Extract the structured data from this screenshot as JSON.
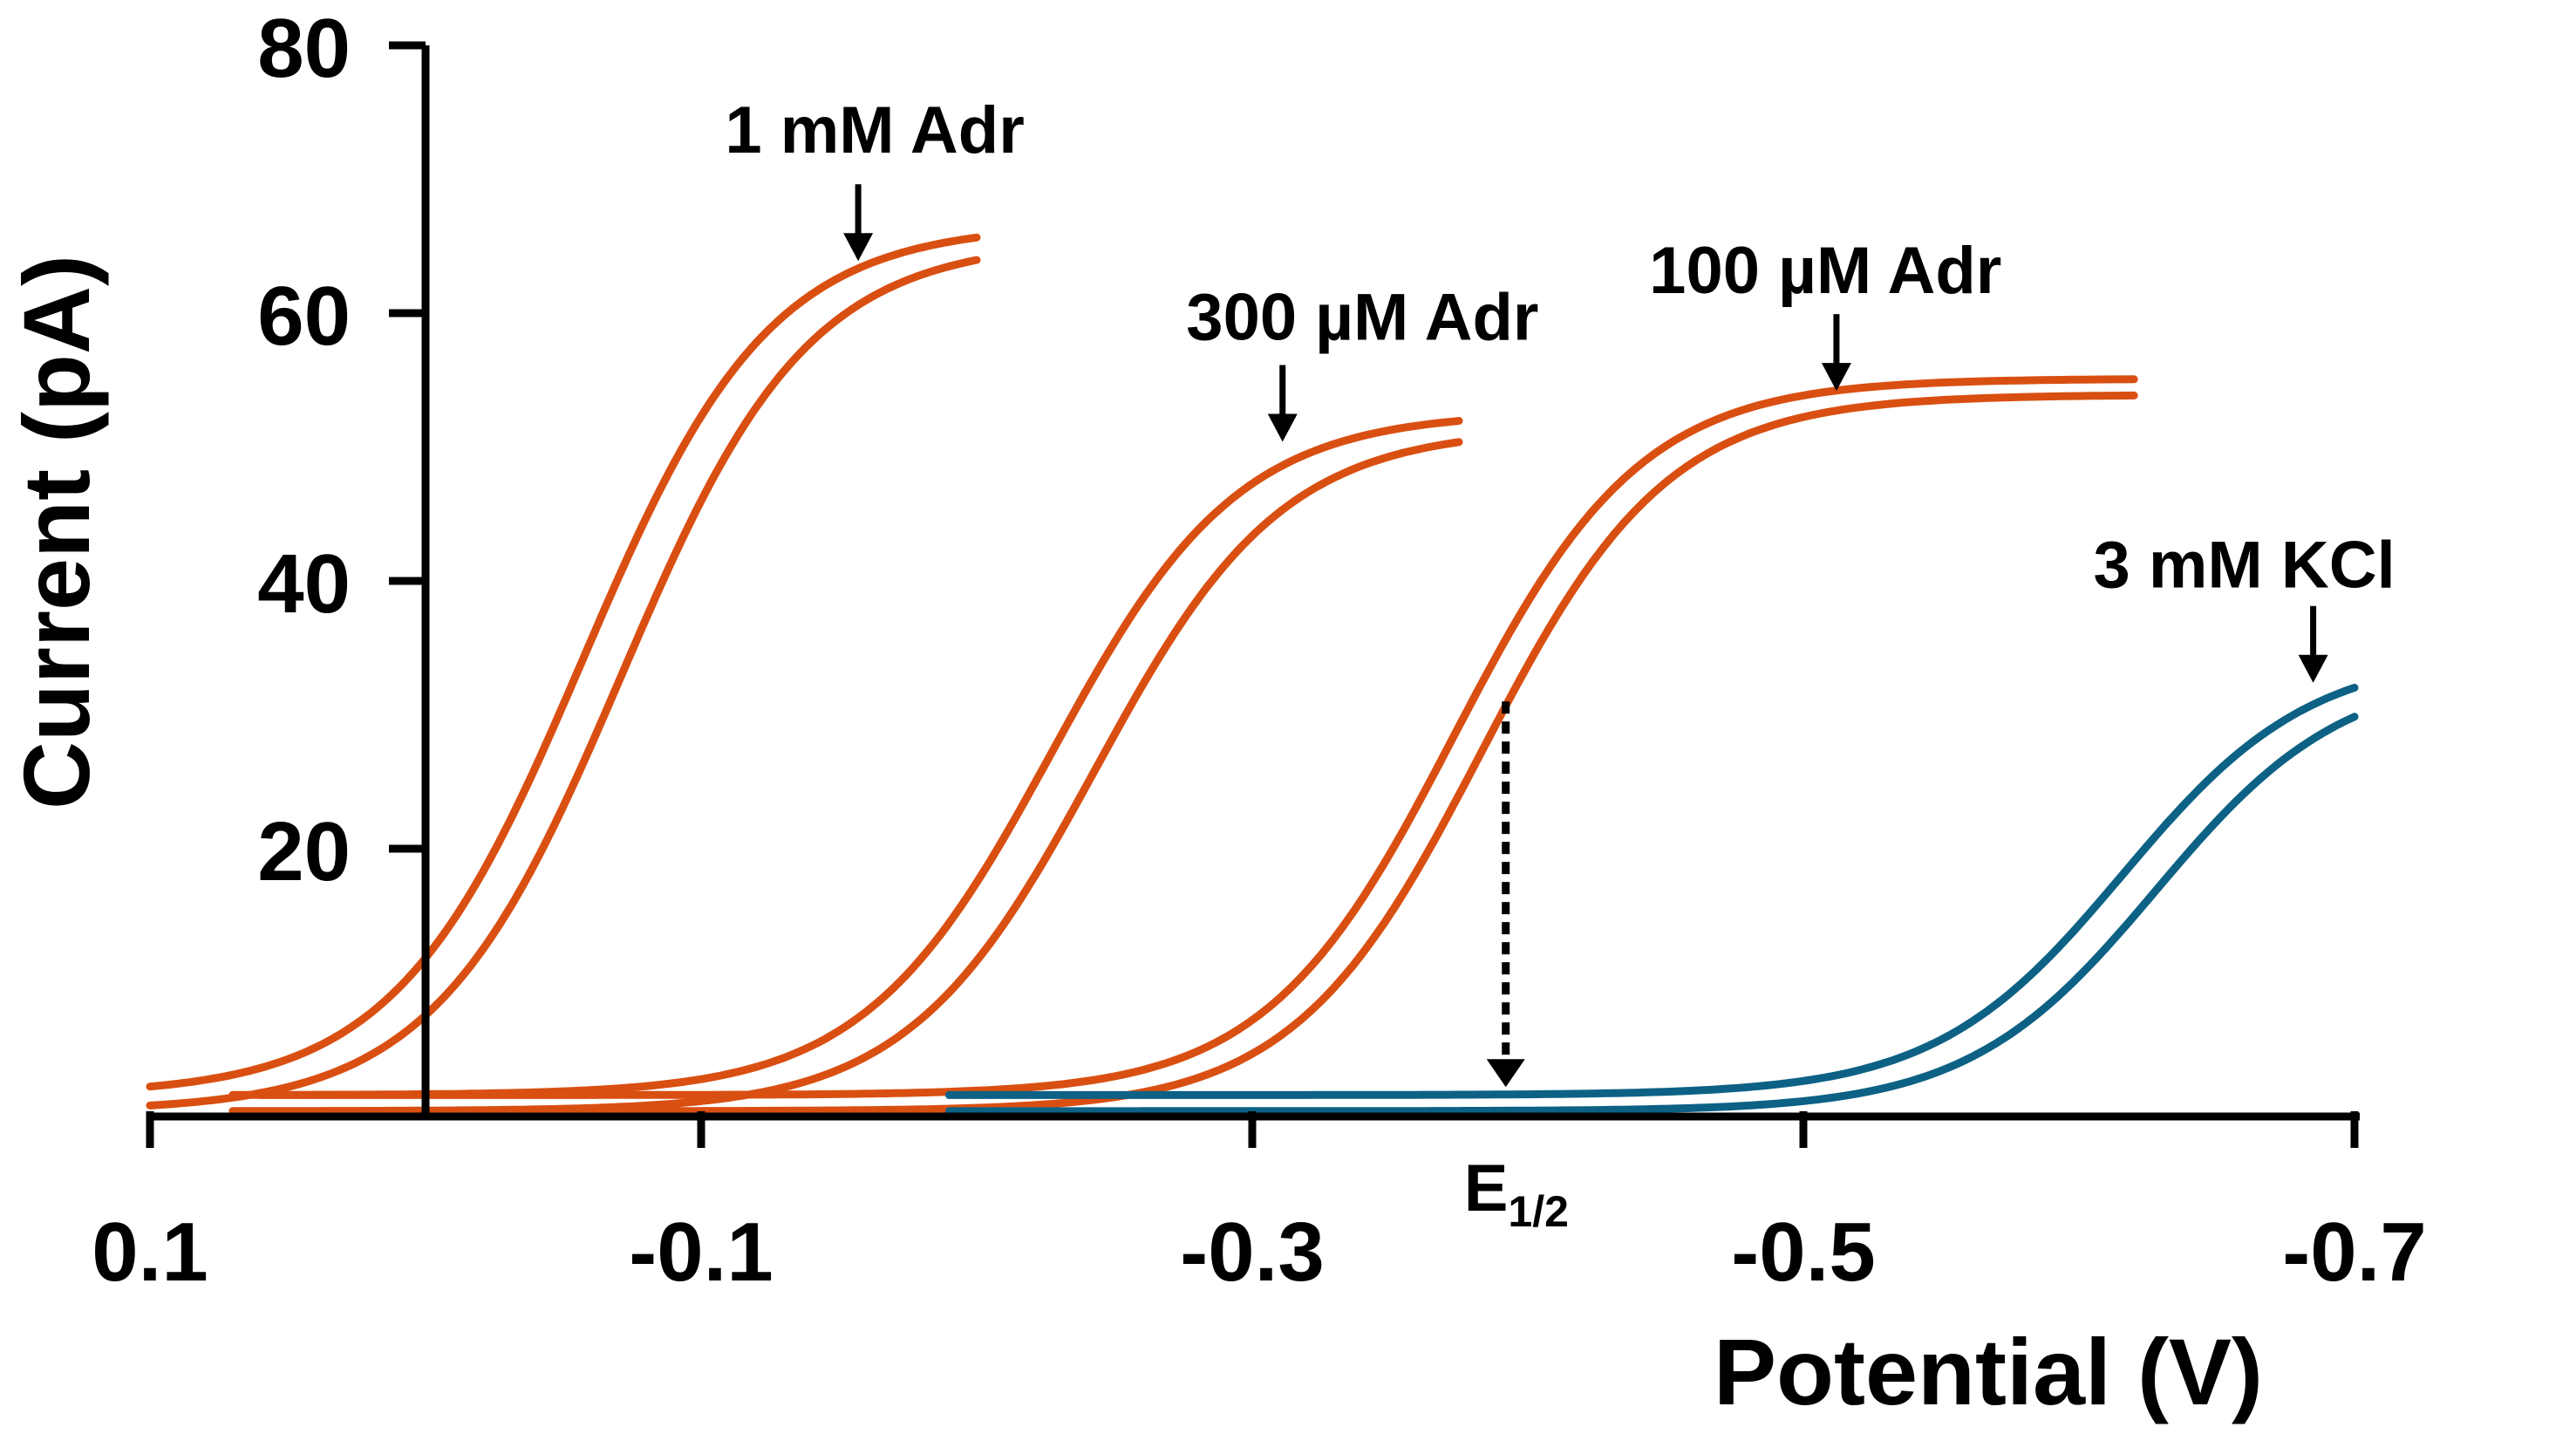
{
  "chart_data": {
    "type": "line",
    "title": "",
    "xlabel": "Potential (V)",
    "ylabel": "Current (pA)",
    "xlim": [
      0.1,
      -0.7
    ],
    "ylim": [
      0,
      80
    ],
    "x_ticks": [
      0.1,
      -0.1,
      -0.3,
      -0.5,
      -0.7
    ],
    "x_tick_labels": [
      "0.1",
      "-0.1",
      "-0.3",
      "-0.5",
      "-0.7"
    ],
    "y_ticks": [
      0,
      20,
      40,
      60,
      80
    ],
    "y_tick_labels": [
      "",
      "20",
      "40",
      "60",
      "80"
    ],
    "grid": false,
    "series": [
      {
        "name": "1 mM Adr",
        "color": "#d94f12",
        "e_half": -0.064,
        "plateau": 65,
        "split": 0.014,
        "x_start": 0.1,
        "x_end": -0.2,
        "arrow_x": -0.157,
        "arrow_y": 63.5,
        "label_x": -0.163,
        "label_y": 72
      },
      {
        "name": "300 µM Adr",
        "color": "#d94f12",
        "e_half": -0.235,
        "plateau": 51,
        "split": 0.016,
        "x_start": 0.07,
        "x_end": -0.375,
        "arrow_x": -0.311,
        "arrow_y": 50,
        "label_x": -0.34,
        "label_y": 58
      },
      {
        "name": "100 µM Adr",
        "color": "#d94f12",
        "e_half": -0.378,
        "plateau": 53.5,
        "split": 0.01,
        "x_start": 0.06,
        "x_end": -0.62,
        "arrow_x": -0.512,
        "arrow_y": 53.8,
        "label_x": -0.508,
        "label_y": 61.5
      },
      {
        "name": "3 mM KCl",
        "color": "#0d6185",
        "e_half": -0.622,
        "plateau": 33,
        "split": 0.012,
        "x_start": -0.19,
        "x_end": -0.7,
        "arrow_x": -0.685,
        "arrow_y": 32,
        "label_x": -0.66,
        "label_y": 39.5
      }
    ],
    "annotations": [
      {
        "text": "E",
        "subscript": "1/2",
        "x": -0.392,
        "y_top": 31,
        "y_bottom": 2.2
      }
    ]
  }
}
